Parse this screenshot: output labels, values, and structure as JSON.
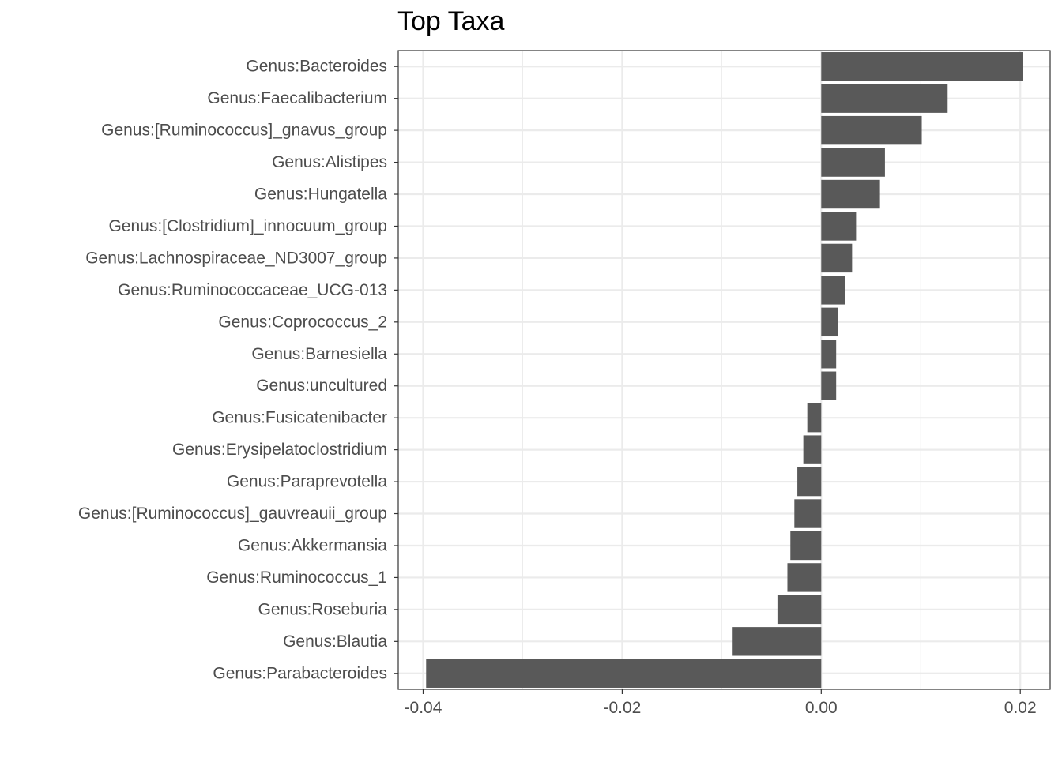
{
  "chart_data": {
    "type": "bar",
    "orientation": "horizontal",
    "title": "Top Taxa",
    "xlabel": "",
    "ylabel": "",
    "xlim": [
      -0.0425,
      0.023
    ],
    "x_ticks": [
      -0.04,
      -0.02,
      0.0,
      0.02
    ],
    "x_tick_labels": [
      "-0.04",
      "-0.02",
      "0.00",
      "0.02"
    ],
    "grid": true,
    "legend": "none",
    "bar_color": "#595959",
    "categories": [
      "Genus:Bacteroides",
      "Genus:Faecalibacterium",
      "Genus:[Ruminococcus]_gnavus_group",
      "Genus:Alistipes",
      "Genus:Hungatella",
      "Genus:[Clostridium]_innocuum_group",
      "Genus:Lachnospiraceae_ND3007_group",
      "Genus:Ruminococcaceae_UCG-013",
      "Genus:Coprococcus_2",
      "Genus:Barnesiella",
      "Genus:uncultured",
      "Genus:Fusicatenibacter",
      "Genus:Erysipelatoclostridium",
      "Genus:Paraprevotella",
      "Genus:[Ruminococcus]_gauvreauii_group",
      "Genus:Akkermansia",
      "Genus:Ruminococcus_1",
      "Genus:Roseburia",
      "Genus:Blautia",
      "Genus:Parabacteroides"
    ],
    "values": [
      0.0203,
      0.0127,
      0.0101,
      0.0064,
      0.0059,
      0.0035,
      0.0031,
      0.0024,
      0.0017,
      0.0015,
      0.0015,
      -0.0014,
      -0.0018,
      -0.0024,
      -0.0027,
      -0.0031,
      -0.0034,
      -0.0044,
      -0.0089,
      -0.0397
    ]
  }
}
